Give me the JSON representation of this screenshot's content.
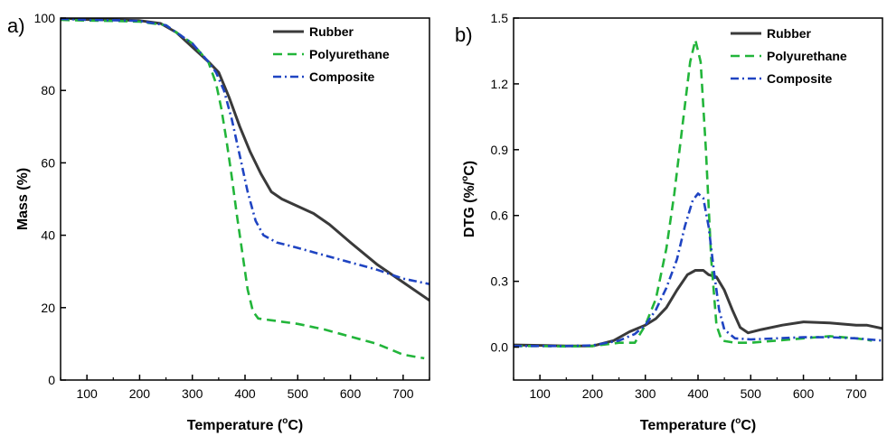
{
  "chart_data": [
    {
      "panel_label": "a)",
      "type": "line",
      "xlabel": "Temperature (°C)",
      "ylabel": "Mass (%)",
      "xlim": [
        50,
        750
      ],
      "ylim": [
        0,
        100
      ],
      "xticks": [
        100,
        200,
        300,
        400,
        500,
        600,
        700
      ],
      "yticks": [
        0,
        20,
        40,
        60,
        80,
        100
      ],
      "legend_position": "top-right",
      "series": [
        {
          "name": "Rubber",
          "color": "#3a3a3a",
          "dash": "solid",
          "points": [
            [
              50,
              100
            ],
            [
              100,
              99.6
            ],
            [
              150,
              99.5
            ],
            [
              200,
              99.3
            ],
            [
              240,
              98.5
            ],
            [
              270,
              96
            ],
            [
              300,
              92
            ],
            [
              330,
              88
            ],
            [
              350,
              85
            ],
            [
              370,
              78
            ],
            [
              390,
              70
            ],
            [
              410,
              63
            ],
            [
              430,
              57
            ],
            [
              450,
              52
            ],
            [
              470,
              50
            ],
            [
              500,
              48
            ],
            [
              530,
              46
            ],
            [
              560,
              43
            ],
            [
              600,
              38
            ],
            [
              650,
              32
            ],
            [
              700,
              27
            ],
            [
              750,
              22
            ]
          ]
        },
        {
          "name": "Polyurethane",
          "color": "#22b53a",
          "dash": "dashed",
          "points": [
            [
              50,
              99.5
            ],
            [
              100,
              99.3
            ],
            [
              150,
              99.2
            ],
            [
              200,
              99
            ],
            [
              250,
              98
            ],
            [
              300,
              93
            ],
            [
              330,
              88
            ],
            [
              345,
              82
            ],
            [
              355,
              75
            ],
            [
              365,
              66
            ],
            [
              375,
              56
            ],
            [
              385,
              45
            ],
            [
              395,
              35
            ],
            [
              405,
              25
            ],
            [
              415,
              19
            ],
            [
              425,
              17
            ],
            [
              450,
              16.5
            ],
            [
              500,
              15.5
            ],
            [
              550,
              14
            ],
            [
              600,
              12
            ],
            [
              650,
              10
            ],
            [
              700,
              7
            ],
            [
              740,
              6
            ]
          ]
        },
        {
          "name": "Composite",
          "color": "#1f44c2",
          "dash": "dashdot",
          "points": [
            [
              50,
              99.8
            ],
            [
              100,
              99.5
            ],
            [
              150,
              99.4
            ],
            [
              200,
              99.2
            ],
            [
              250,
              98
            ],
            [
              300,
              93
            ],
            [
              330,
              88
            ],
            [
              345,
              85
            ],
            [
              360,
              80
            ],
            [
              375,
              72
            ],
            [
              390,
              62
            ],
            [
              405,
              52
            ],
            [
              420,
              44
            ],
            [
              435,
              40
            ],
            [
              460,
              38
            ],
            [
              500,
              36.5
            ],
            [
              550,
              34.5
            ],
            [
              600,
              32.5
            ],
            [
              650,
              30.5
            ],
            [
              700,
              28
            ],
            [
              750,
              26.5
            ]
          ]
        }
      ]
    },
    {
      "panel_label": "b)",
      "type": "line",
      "xlabel": "Temperature (°C)",
      "ylabel": "DTG (%/°C)",
      "xlim": [
        50,
        750
      ],
      "ylim": [
        -0.15,
        1.5
      ],
      "xticks": [
        100,
        200,
        300,
        400,
        500,
        600,
        700
      ],
      "yticks": [
        0.0,
        0.3,
        0.6,
        0.9,
        1.2,
        1.5
      ],
      "ytick_labels": [
        "0.0",
        "0.3",
        "0.6",
        "0.9",
        "1.2",
        "1.5"
      ],
      "legend_position": "top-right",
      "series": [
        {
          "name": "Rubber",
          "color": "#3a3a3a",
          "dash": "solid",
          "points": [
            [
              50,
              0.01
            ],
            [
              100,
              0.008
            ],
            [
              150,
              0.005
            ],
            [
              200,
              0.005
            ],
            [
              240,
              0.03
            ],
            [
              270,
              0.07
            ],
            [
              300,
              0.1
            ],
            [
              320,
              0.13
            ],
            [
              340,
              0.18
            ],
            [
              360,
              0.26
            ],
            [
              380,
              0.33
            ],
            [
              395,
              0.35
            ],
            [
              410,
              0.35
            ],
            [
              420,
              0.33
            ],
            [
              435,
              0.32
            ],
            [
              450,
              0.26
            ],
            [
              465,
              0.17
            ],
            [
              480,
              0.09
            ],
            [
              495,
              0.065
            ],
            [
              520,
              0.08
            ],
            [
              560,
              0.1
            ],
            [
              600,
              0.115
            ],
            [
              650,
              0.11
            ],
            [
              700,
              0.1
            ],
            [
              720,
              0.1
            ],
            [
              750,
              0.085
            ]
          ]
        },
        {
          "name": "Polyurethane",
          "color": "#22b53a",
          "dash": "dashed",
          "points": [
            [
              50,
              0.005
            ],
            [
              100,
              0.005
            ],
            [
              150,
              0.003
            ],
            [
              200,
              0.005
            ],
            [
              250,
              0.02
            ],
            [
              280,
              0.02
            ],
            [
              300,
              0.1
            ],
            [
              320,
              0.22
            ],
            [
              340,
              0.45
            ],
            [
              355,
              0.7
            ],
            [
              370,
              1.0
            ],
            [
              385,
              1.3
            ],
            [
              395,
              1.4
            ],
            [
              405,
              1.3
            ],
            [
              415,
              0.9
            ],
            [
              425,
              0.4
            ],
            [
              435,
              0.1
            ],
            [
              445,
              0.03
            ],
            [
              470,
              0.02
            ],
            [
              500,
              0.02
            ],
            [
              550,
              0.03
            ],
            [
              600,
              0.04
            ],
            [
              650,
              0.05
            ],
            [
              700,
              0.04
            ],
            [
              730,
              0.03
            ]
          ]
        },
        {
          "name": "Composite",
          "color": "#1f44c2",
          "dash": "dashdot",
          "points": [
            [
              50,
              0.005
            ],
            [
              100,
              0.005
            ],
            [
              150,
              0.005
            ],
            [
              200,
              0.008
            ],
            [
              250,
              0.03
            ],
            [
              280,
              0.06
            ],
            [
              300,
              0.1
            ],
            [
              320,
              0.17
            ],
            [
              340,
              0.27
            ],
            [
              360,
              0.4
            ],
            [
              375,
              0.55
            ],
            [
              390,
              0.67
            ],
            [
              400,
              0.7
            ],
            [
              410,
              0.68
            ],
            [
              420,
              0.55
            ],
            [
              430,
              0.35
            ],
            [
              440,
              0.17
            ],
            [
              450,
              0.08
            ],
            [
              470,
              0.04
            ],
            [
              500,
              0.035
            ],
            [
              550,
              0.04
            ],
            [
              600,
              0.045
            ],
            [
              650,
              0.045
            ],
            [
              700,
              0.04
            ],
            [
              750,
              0.03
            ]
          ]
        }
      ]
    }
  ]
}
